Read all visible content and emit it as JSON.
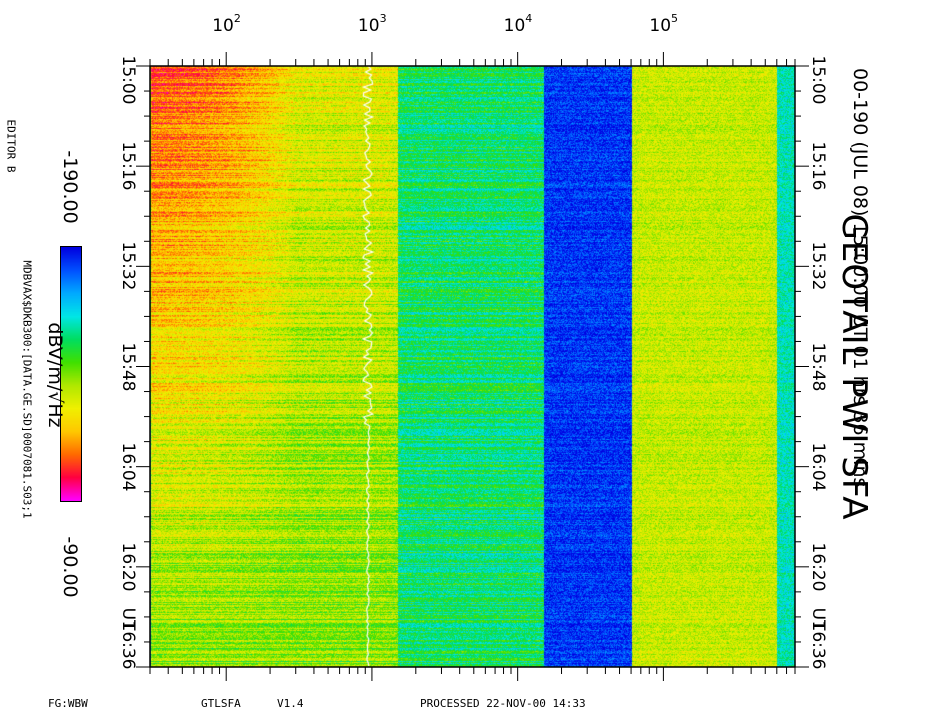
{
  "header": {
    "title": "GEOTAIL PWI SFA",
    "subtitle": "00-190 (JUL 08) 15:00:00 UT    01 hrs  36 mins"
  },
  "side": {
    "editor": "EDITOR B",
    "file": "MDBVAX$DKB300:[DATA.GE.SD]0007081.S03;1"
  },
  "colorbar": {
    "unit": "dBV/m/√Hz",
    "min_label": "-190.00",
    "max_label": "-90.00",
    "colors": [
      "#0000e0",
      "#0050ff",
      "#00aaff",
      "#00e6e6",
      "#00dd60",
      "#40e000",
      "#b0e800",
      "#f0f000",
      "#ffc800",
      "#ff6a00",
      "#ff0040",
      "#ff00ff"
    ]
  },
  "footer": {
    "left": "FG:WBW",
    "program": "GTLSFA",
    "version": "V1.4",
    "processed": "PROCESSED 22-NOV-00   14:33"
  },
  "chart_data": {
    "type": "heatmap",
    "xlabel": "",
    "ylabel": "",
    "x_scale": "log",
    "x_ticks": [
      {
        "base": "10",
        "exp": "2",
        "value": 100
      },
      {
        "base": "10",
        "exp": "3",
        "value": 1000
      },
      {
        "base": "10",
        "exp": "4",
        "value": 10000
      },
      {
        "base": "10",
        "exp": "5",
        "value": 100000
      }
    ],
    "xlim": [
      30,
      800000
    ],
    "y_ticks": [
      "15:00",
      "15:16",
      "15:32",
      "15:48",
      "16:04",
      "16:20",
      "16:36"
    ],
    "y_tick_suffix": "UT",
    "time_range": [
      "15:00",
      "16:36"
    ],
    "color_scale": {
      "min": -190.0,
      "max": -90.0,
      "unit": "dBV/m/√Hz"
    },
    "bands": [
      {
        "f_start": 30,
        "f_end": 1500,
        "level": 0.62
      },
      {
        "f_start": 1500,
        "f_end": 15000,
        "level": 0.36
      },
      {
        "f_start": 15000,
        "f_end": 60000,
        "level": 0.06
      },
      {
        "f_start": 60000,
        "f_end": 600000,
        "level": 0.58
      },
      {
        "f_start": 600000,
        "f_end": 800000,
        "level": 0.3
      }
    ],
    "trace": {
      "name": "",
      "color": "#ffffff",
      "approx_freq": 1100
    }
  }
}
